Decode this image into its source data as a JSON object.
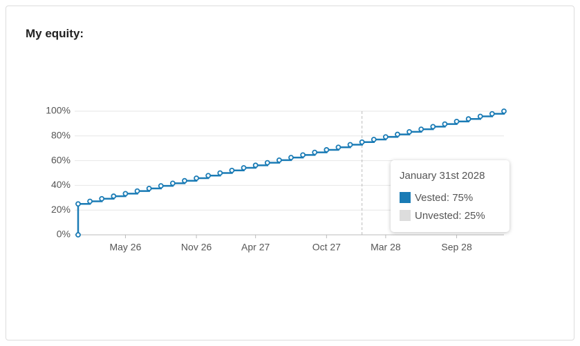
{
  "header": {
    "title": "My equity:"
  },
  "chart_data": {
    "type": "step-line",
    "x": [
      "2026-01",
      "2026-01",
      "2026-02",
      "2026-03",
      "2026-04",
      "2026-05",
      "2026-06",
      "2026-07",
      "2026-08",
      "2026-09",
      "2026-10",
      "2026-11",
      "2026-12",
      "2027-01",
      "2027-02",
      "2027-03",
      "2027-04",
      "2027-05",
      "2027-06",
      "2027-07",
      "2027-08",
      "2027-09",
      "2027-10",
      "2027-11",
      "2027-12",
      "2028-01",
      "2028-02",
      "2028-03",
      "2028-04",
      "2028-05",
      "2028-06",
      "2028-07",
      "2028-08",
      "2028-09",
      "2028-10",
      "2028-11",
      "2028-12",
      "2029-01"
    ],
    "series": [
      {
        "name": "Vested",
        "color": "#1a7bb5",
        "values": [
          0,
          25,
          27.08,
          29.17,
          31.25,
          33.33,
          35.42,
          37.5,
          39.58,
          41.67,
          43.75,
          45.83,
          47.92,
          50,
          52.08,
          54.17,
          56.25,
          58.33,
          60.42,
          62.5,
          64.58,
          66.67,
          68.75,
          70.83,
          72.92,
          75,
          77.08,
          79.17,
          81.25,
          83.33,
          85.42,
          87.5,
          89.58,
          91.67,
          93.75,
          95.83,
          97.92,
          100
        ]
      }
    ],
    "xlim": [
      "2026-01",
      "2029-01"
    ],
    "xticks": [
      {
        "value": "2026-05",
        "label": "May 26"
      },
      {
        "value": "2026-11",
        "label": "Nov 26"
      },
      {
        "value": "2027-04",
        "label": "Apr 27"
      },
      {
        "value": "2027-10",
        "label": "Oct 27"
      },
      {
        "value": "2028-03",
        "label": "Mar 28"
      },
      {
        "value": "2028-09",
        "label": "Sep 28"
      }
    ],
    "ylim": [
      0,
      100
    ],
    "yticks": [
      {
        "value": 0,
        "label": "0%"
      },
      {
        "value": 20,
        "label": "20%"
      },
      {
        "value": 40,
        "label": "40%"
      },
      {
        "value": 60,
        "label": "60%"
      },
      {
        "value": 80,
        "label": "80%"
      },
      {
        "value": 100,
        "label": "100%"
      }
    ],
    "grid": true,
    "tooltip": {
      "x": "2028-01",
      "title": "January 31st 2028",
      "items": [
        {
          "label": "Vested: 75%",
          "color": "#1a7bb5"
        },
        {
          "label": "Unvested: 25%",
          "color": "#dddddd"
        }
      ]
    }
  }
}
